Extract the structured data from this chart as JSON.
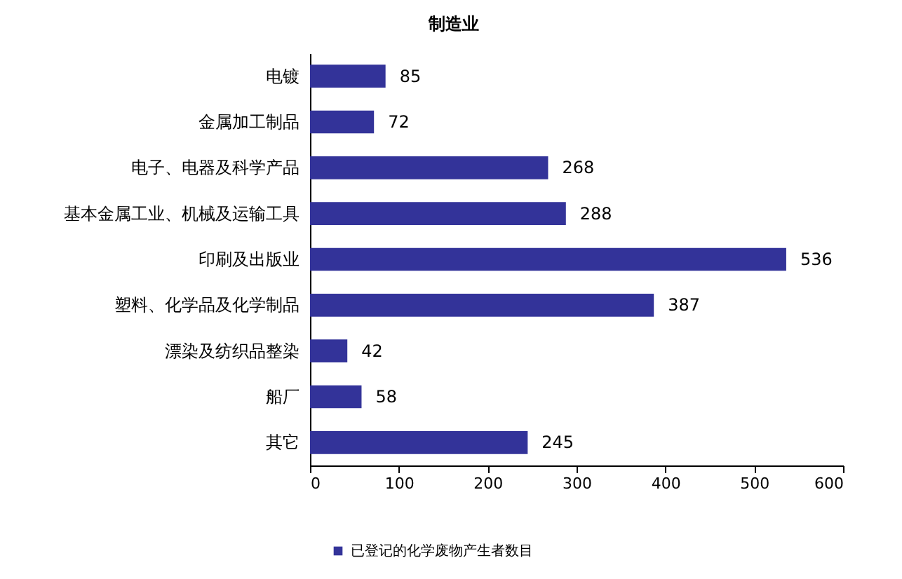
{
  "chart_data": {
    "type": "bar",
    "orientation": "horizontal",
    "title": "制造业",
    "categories": [
      "电镀",
      "金属加工制品",
      "电子、电器及科学产品",
      "基本金属工业、机械及运输工具",
      "印刷及出版业",
      "塑料、化学品及化学制品",
      "漂染及纺织品整染",
      "船厂",
      "其它"
    ],
    "series": [
      {
        "name": "已登记的化学废物产生者数目",
        "color": "#333399",
        "values": [
          85,
          72,
          268,
          288,
          536,
          387,
          42,
          58,
          245
        ]
      }
    ],
    "xlim": [
      0,
      600
    ],
    "xticks": [
      0,
      100,
      200,
      300,
      400,
      500,
      600
    ],
    "grid": false,
    "legend": "bottom",
    "data_labels": true
  }
}
